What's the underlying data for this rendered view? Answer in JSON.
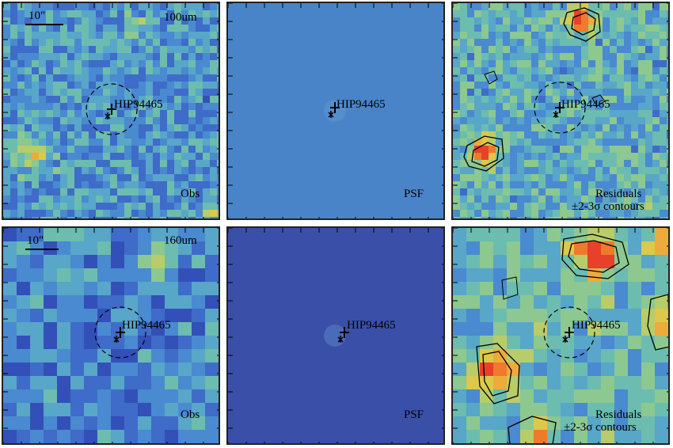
{
  "figure": {
    "rows": [
      {
        "band": "100um",
        "scale_label": "10\"",
        "obs_label": "Obs",
        "psf_label": "PSF",
        "residual_label_1": "Residuals",
        "residual_label_2": "±2-3σ contours",
        "source_name": "HIP94465"
      },
      {
        "band": "160um",
        "scale_label": "10\"",
        "obs_label": "Obs",
        "psf_label": "PSF",
        "residual_label_1": "Residuals",
        "residual_label_2": "±2-3σ contours",
        "source_name": "HIP94465"
      }
    ],
    "colors": {
      "psf_100_bg": "#4a84c8",
      "psf_160_bg": "#3a4fa8",
      "contour": "#000000",
      "frame": "#222222"
    }
  }
}
